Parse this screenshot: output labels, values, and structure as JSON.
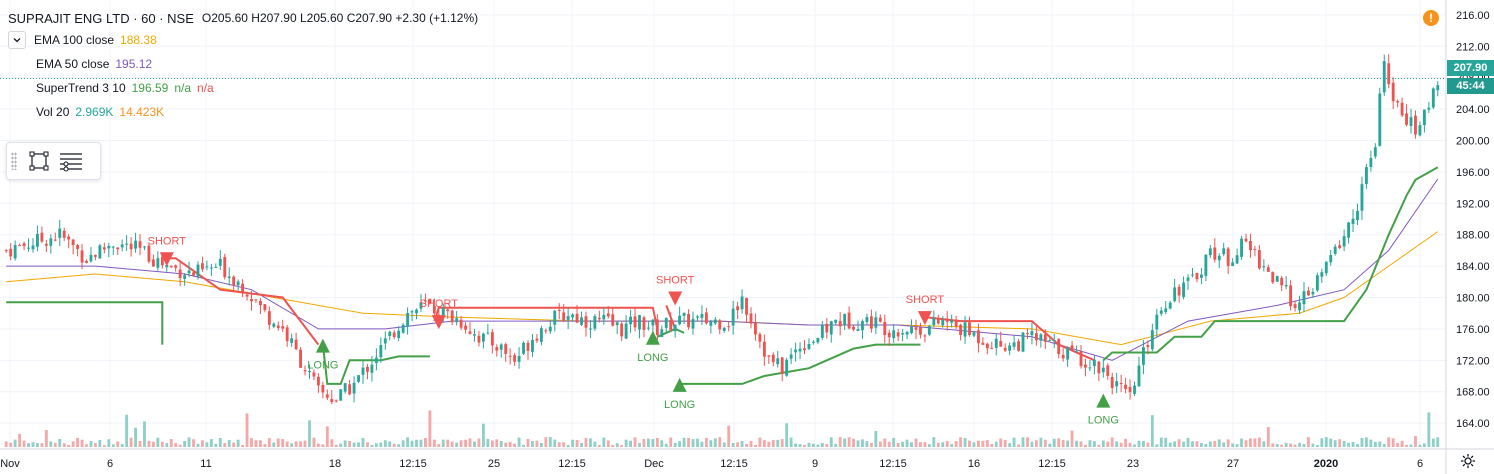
{
  "header": {
    "title": "SUPRAJIT ENG LTD · 60 · NSE",
    "ohlc": "O205.60  H207.90  L205.60  C207.90  +2.30 (+1.12%)"
  },
  "indicators": [
    {
      "name": "EMA 100 close",
      "values": [
        "188.38"
      ],
      "colors": [
        "#f0a800"
      ]
    },
    {
      "name": "EMA 50 close",
      "values": [
        "195.12"
      ],
      "colors": [
        "#7e57c2"
      ]
    },
    {
      "name": "SuperTrend 3 10",
      "values": [
        "196.59",
        "n/a",
        "n/a"
      ],
      "colors": [
        "#43a047",
        "#43a047",
        "#ef5350"
      ]
    },
    {
      "name": "Vol 20",
      "values": [
        "2.969K",
        "14.423K"
      ],
      "colors": [
        "#26a69a",
        "#f7931a"
      ]
    }
  ],
  "price_axis": {
    "ticks": [
      "216.00",
      "212.00",
      "208.00",
      "204.00",
      "200.00",
      "196.00",
      "192.00",
      "188.00",
      "184.00",
      "180.00",
      "176.00",
      "172.00",
      "168.00",
      "164.00"
    ],
    "last_price": "207.90",
    "countdown": "45:44"
  },
  "time_axis": {
    "labels": [
      "Nov",
      "6",
      "11",
      "18",
      "12:15",
      "25",
      "12:15",
      "Dec",
      "12:15",
      "9",
      "12:15",
      "16",
      "12:15",
      "23",
      "27",
      "2020",
      "6"
    ]
  },
  "signals": [
    "SHORT",
    "LONG",
    "SHORT",
    "LONG",
    "SHORT",
    "LONG",
    "SHORT",
    "LONG"
  ],
  "colors": {
    "up": "#26a69a",
    "down": "#ef5350",
    "ema100": "#f0a800",
    "ema50": "#7e57c2",
    "st_long": "#43a047",
    "st_short": "#ef5350"
  },
  "chart_data": {
    "type": "candlestick",
    "symbol": "SUPRAJIT ENG LTD",
    "interval": "60",
    "exchange": "NSE",
    "ylim": [
      163,
      217
    ],
    "x_labels": [
      "Nov",
      "6",
      "11",
      "18",
      "12:15",
      "25",
      "12:15",
      "Dec",
      "12:15",
      "9",
      "12:15",
      "16",
      "12:15",
      "23",
      "27",
      "2020",
      "6"
    ],
    "close_path": [
      [
        0,
        186
      ],
      [
        6,
        187
      ],
      [
        12,
        188
      ],
      [
        18,
        185
      ],
      [
        24,
        187
      ],
      [
        30,
        186
      ],
      [
        36,
        184
      ],
      [
        42,
        183
      ],
      [
        48,
        184
      ],
      [
        54,
        181
      ],
      [
        58,
        178
      ],
      [
        62,
        176
      ],
      [
        66,
        172
      ],
      [
        70,
        168
      ],
      [
        74,
        167
      ],
      [
        78,
        169
      ],
      [
        82,
        172
      ],
      [
        86,
        175
      ],
      [
        90,
        178
      ],
      [
        94,
        179
      ],
      [
        98,
        178
      ],
      [
        102,
        177
      ],
      [
        106,
        175
      ],
      [
        110,
        174
      ],
      [
        114,
        172
      ],
      [
        118,
        175
      ],
      [
        122,
        177
      ],
      [
        126,
        178
      ],
      [
        130,
        177
      ],
      [
        134,
        177
      ],
      [
        138,
        176
      ],
      [
        142,
        177
      ],
      [
        146,
        176
      ],
      [
        150,
        177
      ],
      [
        154,
        177
      ],
      [
        158,
        177
      ],
      [
        162,
        177
      ],
      [
        165,
        180
      ],
      [
        168,
        176
      ],
      [
        171,
        172
      ],
      [
        174,
        171
      ],
      [
        178,
        174
      ],
      [
        182,
        175
      ],
      [
        186,
        177
      ],
      [
        190,
        177
      ],
      [
        194,
        177
      ],
      [
        198,
        176
      ],
      [
        202,
        176
      ],
      [
        206,
        176
      ],
      [
        210,
        177
      ],
      [
        214,
        176
      ],
      [
        218,
        175
      ],
      [
        222,
        174
      ],
      [
        226,
        174
      ],
      [
        230,
        175
      ],
      [
        234,
        174
      ],
      [
        238,
        173
      ],
      [
        242,
        172
      ],
      [
        246,
        171
      ],
      [
        250,
        168
      ],
      [
        252,
        167
      ],
      [
        254,
        171
      ],
      [
        258,
        178
      ],
      [
        262,
        181
      ],
      [
        266,
        182
      ],
      [
        270,
        186
      ],
      [
        274,
        185
      ],
      [
        278,
        187
      ],
      [
        282,
        184
      ],
      [
        286,
        181
      ],
      [
        290,
        179
      ],
      [
        294,
        182
      ],
      [
        298,
        186
      ],
      [
        302,
        190
      ],
      [
        305,
        196
      ],
      [
        307,
        199
      ],
      [
        309,
        211
      ],
      [
        311,
        204
      ],
      [
        313,
        204
      ],
      [
        315,
        202
      ],
      [
        317,
        201
      ],
      [
        319,
        205
      ],
      [
        321,
        208
      ]
    ],
    "ema100_path": [
      [
        0,
        182
      ],
      [
        20,
        183
      ],
      [
        40,
        182
      ],
      [
        60,
        180
      ],
      [
        80,
        178
      ],
      [
        100,
        177.5
      ],
      [
        130,
        177
      ],
      [
        160,
        177
      ],
      [
        180,
        176.5
      ],
      [
        200,
        176.5
      ],
      [
        230,
        176
      ],
      [
        250,
        174
      ],
      [
        270,
        177
      ],
      [
        290,
        178
      ],
      [
        300,
        180
      ],
      [
        310,
        184
      ],
      [
        321,
        188.4
      ]
    ],
    "ema50_path": [
      [
        0,
        184
      ],
      [
        20,
        184
      ],
      [
        40,
        183
      ],
      [
        55,
        181
      ],
      [
        70,
        176
      ],
      [
        85,
        176
      ],
      [
        100,
        177
      ],
      [
        130,
        177
      ],
      [
        160,
        177
      ],
      [
        180,
        176.5
      ],
      [
        200,
        176.5
      ],
      [
        230,
        175
      ],
      [
        248,
        172
      ],
      [
        265,
        177
      ],
      [
        285,
        179
      ],
      [
        300,
        181
      ],
      [
        310,
        186
      ],
      [
        321,
        195.1
      ]
    ],
    "supertrend_segments": [
      {
        "trend": "long",
        "points": [
          [
            0,
            179.4
          ],
          [
            35,
            179.4
          ],
          [
            35,
            174
          ]
        ]
      },
      {
        "trend": "short",
        "points": [
          [
            36,
            185
          ],
          [
            38,
            185
          ],
          [
            48,
            181
          ],
          [
            62,
            180
          ],
          [
            70,
            174
          ]
        ]
      },
      {
        "trend": "long",
        "points": [
          [
            71,
            174
          ],
          [
            72,
            169
          ],
          [
            75,
            169
          ],
          [
            77,
            172
          ],
          [
            84,
            172
          ],
          [
            88,
            172.5
          ],
          [
            95,
            172.5
          ]
        ]
      },
      {
        "trend": "short",
        "points": [
          [
            96,
            177
          ],
          [
            97,
            178.7
          ],
          [
            145,
            178.7
          ],
          [
            146,
            176
          ]
        ]
      },
      {
        "trend": "long",
        "points": [
          [
            146,
            175
          ],
          [
            150,
            176
          ],
          [
            152,
            175.5
          ]
        ]
      },
      {
        "trend": "short",
        "points": [
          [
            148,
            179
          ],
          [
            150,
            176
          ]
        ]
      },
      {
        "trend": "long",
        "points": [
          [
            151,
            169
          ],
          [
            165,
            169
          ],
          [
            170,
            170
          ],
          [
            180,
            171
          ],
          [
            186,
            172.5
          ],
          [
            190,
            173.5
          ],
          [
            195,
            174
          ],
          [
            205,
            174
          ]
        ]
      },
      {
        "trend": "short",
        "points": [
          [
            206,
            177.5
          ],
          [
            214,
            177
          ],
          [
            230,
            177
          ],
          [
            236,
            174
          ],
          [
            244,
            172
          ]
        ]
      },
      {
        "trend": "long",
        "points": [
          [
            246,
            172
          ],
          [
            248,
            173
          ],
          [
            258,
            173
          ],
          [
            262,
            175
          ],
          [
            268,
            175
          ],
          [
            271,
            177
          ],
          [
            300,
            177
          ],
          [
            305,
            181
          ],
          [
            310,
            188
          ],
          [
            314,
            193
          ],
          [
            316,
            195
          ],
          [
            321,
            196.6
          ]
        ]
      }
    ],
    "signals": [
      {
        "label": "SHORT",
        "x": 36,
        "y": 185
      },
      {
        "label": "LONG",
        "x": 71,
        "y": 174
      },
      {
        "label": "SHORT",
        "x": 97,
        "y": 177
      },
      {
        "label": "LONG",
        "x": 145,
        "y": 175
      },
      {
        "label": "SHORT",
        "x": 150,
        "y": 180
      },
      {
        "label": "LONG",
        "x": 151,
        "y": 169
      },
      {
        "label": "SHORT",
        "x": 206,
        "y": 177.5
      },
      {
        "label": "LONG",
        "x": 246,
        "y": 167
      }
    ]
  }
}
